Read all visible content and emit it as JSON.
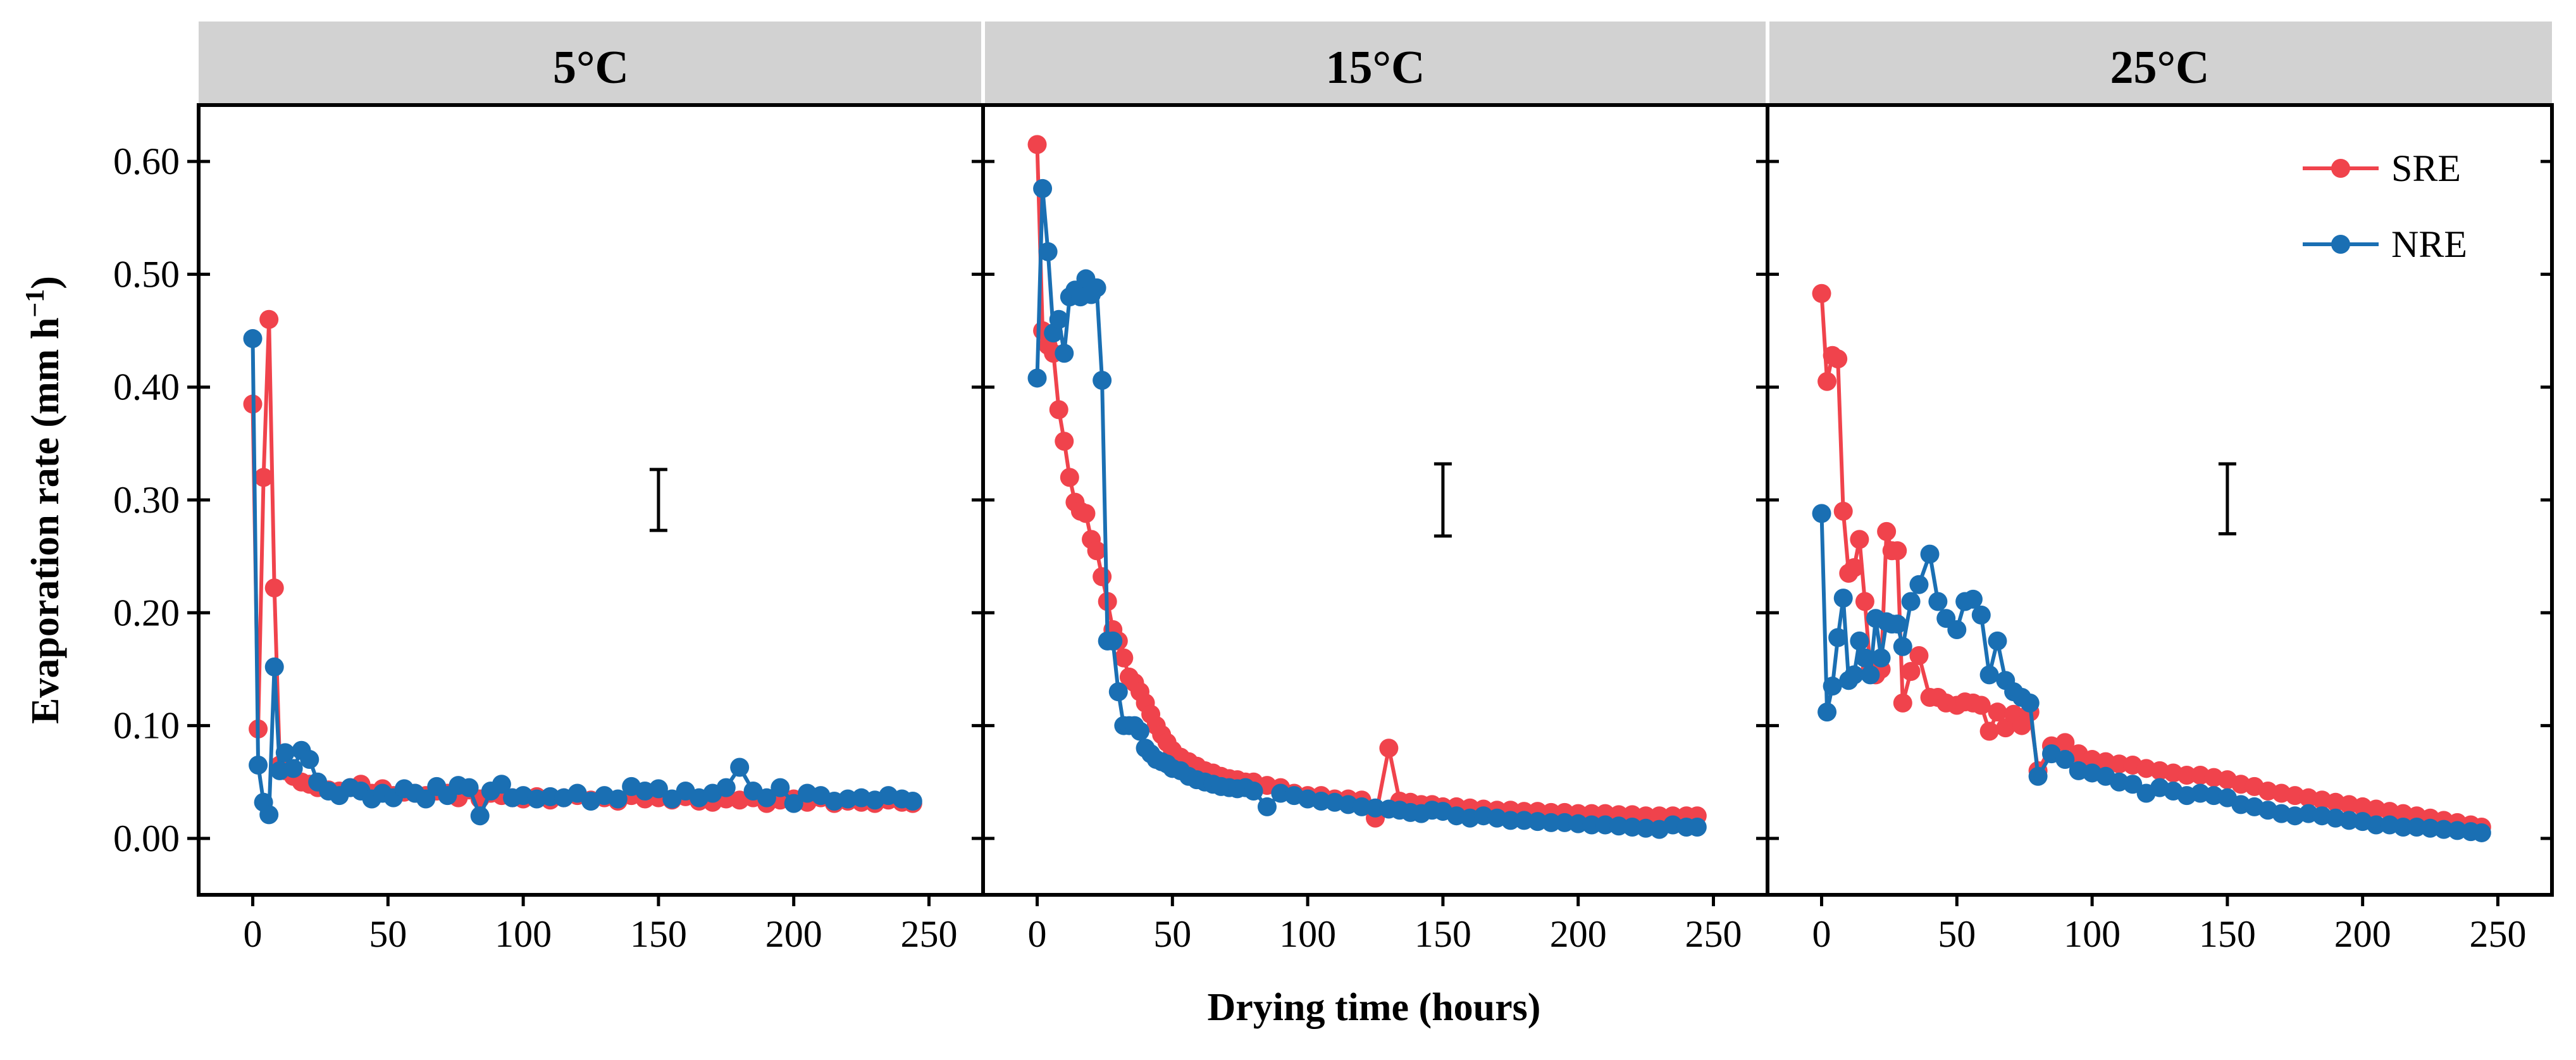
{
  "chart_data": {
    "type": "line",
    "xlabel": "Drying time (hours)",
    "ylabel_main": "Evaporation rate (mm h",
    "ylabel_sup": "−1",
    "ylabel_end": ")",
    "xlim": [
      -20,
      270
    ],
    "ylim": [
      -0.05,
      0.65
    ],
    "x_ticks": [
      0,
      50,
      100,
      150,
      200,
      250
    ],
    "y_ticks": [
      0.0,
      0.1,
      0.2,
      0.3,
      0.4,
      0.5,
      0.6
    ],
    "y_tick_labels": [
      "0.00",
      "0.10",
      "0.20",
      "0.30",
      "0.40",
      "0.50",
      "0.60"
    ],
    "x_tick_labels": [
      "0",
      "50",
      "100",
      "150",
      "200",
      "250"
    ],
    "legend": [
      {
        "name": "SRE",
        "color": "#f0434c"
      },
      {
        "name": "NRE",
        "color": "#1a6fb3"
      }
    ],
    "panels": [
      {
        "title": "5°C",
        "error_bar": {
          "x": 150,
          "low": 0.273,
          "high": 0.327
        },
        "series": [
          {
            "name": "SRE",
            "color": "#f0434c",
            "x": [
              0,
              2,
              4,
              6,
              8,
              10,
              12,
              15,
              18,
              21,
              24,
              28,
              32,
              36,
              40,
              44,
              48,
              52,
              56,
              60,
              64,
              68,
              72,
              76,
              80,
              84,
              88,
              92,
              96,
              100,
              105,
              110,
              115,
              120,
              125,
              130,
              135,
              140,
              145,
              150,
              155,
              160,
              165,
              170,
              175,
              180,
              185,
              190,
              195,
              200,
              205,
              210,
              215,
              220,
              225,
              230,
              235,
              240,
              244
            ],
            "y": [
              0.385,
              0.097,
              0.32,
              0.46,
              0.222,
              0.065,
              0.06,
              0.055,
              0.05,
              0.048,
              0.045,
              0.043,
              0.042,
              0.045,
              0.048,
              0.04,
              0.044,
              0.038,
              0.041,
              0.04,
              0.038,
              0.042,
              0.04,
              0.036,
              0.043,
              0.035,
              0.04,
              0.038,
              0.036,
              0.035,
              0.037,
              0.034,
              0.036,
              0.038,
              0.034,
              0.036,
              0.033,
              0.038,
              0.035,
              0.036,
              0.034,
              0.037,
              0.033,
              0.032,
              0.035,
              0.034,
              0.036,
              0.031,
              0.034,
              0.035,
              0.032,
              0.036,
              0.031,
              0.033,
              0.032,
              0.031,
              0.034,
              0.032,
              0.031
            ]
          },
          {
            "name": "NRE",
            "color": "#1a6fb3",
            "x": [
              0,
              2,
              4,
              6,
              8,
              10,
              12,
              15,
              18,
              21,
              24,
              28,
              32,
              36,
              40,
              44,
              48,
              52,
              56,
              60,
              64,
              68,
              72,
              76,
              80,
              84,
              88,
              92,
              96,
              100,
              105,
              110,
              115,
              120,
              125,
              130,
              135,
              140,
              145,
              150,
              155,
              160,
              165,
              170,
              175,
              180,
              185,
              190,
              195,
              200,
              205,
              210,
              215,
              220,
              225,
              230,
              235,
              240,
              244
            ],
            "y": [
              0.443,
              0.065,
              0.032,
              0.021,
              0.152,
              0.06,
              0.076,
              0.062,
              0.078,
              0.07,
              0.05,
              0.042,
              0.038,
              0.045,
              0.042,
              0.035,
              0.04,
              0.036,
              0.044,
              0.04,
              0.035,
              0.046,
              0.038,
              0.047,
              0.045,
              0.02,
              0.042,
              0.048,
              0.036,
              0.038,
              0.035,
              0.037,
              0.036,
              0.04,
              0.033,
              0.038,
              0.035,
              0.046,
              0.042,
              0.044,
              0.035,
              0.042,
              0.036,
              0.04,
              0.045,
              0.063,
              0.042,
              0.036,
              0.045,
              0.031,
              0.04,
              0.038,
              0.033,
              0.035,
              0.036,
              0.034,
              0.038,
              0.035,
              0.033
            ]
          }
        ]
      },
      {
        "title": "15°C",
        "error_bar": {
          "x": 150,
          "low": 0.268,
          "high": 0.332
        },
        "series": [
          {
            "name": "SRE",
            "color": "#f0434c",
            "x": [
              0,
              2,
              4,
              6,
              8,
              10,
              12,
              14,
              16,
              18,
              20,
              22,
              24,
              26,
              28,
              30,
              32,
              34,
              36,
              38,
              40,
              42,
              44,
              46,
              48,
              50,
              53,
              56,
              59,
              62,
              65,
              68,
              71,
              74,
              77,
              80,
              85,
              90,
              95,
              100,
              105,
              110,
              115,
              120,
              125,
              130,
              134,
              138,
              142,
              146,
              150,
              155,
              160,
              165,
              170,
              175,
              180,
              185,
              190,
              195,
              200,
              205,
              210,
              215,
              220,
              225,
              230,
              235,
              240,
              244
            ],
            "y": [
              0.615,
              0.45,
              0.437,
              0.43,
              0.38,
              0.352,
              0.32,
              0.298,
              0.29,
              0.288,
              0.265,
              0.255,
              0.232,
              0.21,
              0.185,
              0.175,
              0.16,
              0.143,
              0.138,
              0.13,
              0.12,
              0.11,
              0.1,
              0.092,
              0.085,
              0.078,
              0.072,
              0.068,
              0.064,
              0.06,
              0.058,
              0.055,
              0.053,
              0.052,
              0.05,
              0.05,
              0.047,
              0.045,
              0.04,
              0.038,
              0.038,
              0.035,
              0.035,
              0.034,
              0.018,
              0.08,
              0.033,
              0.032,
              0.03,
              0.03,
              0.028,
              0.028,
              0.027,
              0.026,
              0.025,
              0.025,
              0.024,
              0.024,
              0.023,
              0.023,
              0.022,
              0.022,
              0.022,
              0.021,
              0.021,
              0.02,
              0.02,
              0.02,
              0.02,
              0.02
            ]
          },
          {
            "name": "NRE",
            "color": "#1a6fb3",
            "x": [
              0,
              2,
              4,
              6,
              8,
              10,
              12,
              14,
              16,
              18,
              20,
              22,
              24,
              26,
              28,
              30,
              32,
              34,
              36,
              38,
              40,
              42,
              44,
              46,
              48,
              50,
              53,
              56,
              59,
              62,
              65,
              68,
              71,
              74,
              77,
              80,
              85,
              90,
              95,
              100,
              105,
              110,
              115,
              120,
              125,
              130,
              134,
              138,
              142,
              146,
              150,
              155,
              160,
              165,
              170,
              175,
              180,
              185,
              190,
              195,
              200,
              205,
              210,
              215,
              220,
              225,
              230,
              235,
              240,
              244
            ],
            "y": [
              0.408,
              0.576,
              0.52,
              0.448,
              0.46,
              0.43,
              0.48,
              0.486,
              0.48,
              0.496,
              0.482,
              0.488,
              0.406,
              0.175,
              0.175,
              0.13,
              0.1,
              0.1,
              0.1,
              0.095,
              0.08,
              0.075,
              0.07,
              0.068,
              0.066,
              0.062,
              0.06,
              0.055,
              0.052,
              0.05,
              0.048,
              0.046,
              0.045,
              0.044,
              0.045,
              0.042,
              0.028,
              0.04,
              0.038,
              0.035,
              0.033,
              0.032,
              0.03,
              0.028,
              0.027,
              0.026,
              0.025,
              0.023,
              0.022,
              0.025,
              0.024,
              0.02,
              0.018,
              0.02,
              0.018,
              0.016,
              0.016,
              0.015,
              0.014,
              0.014,
              0.013,
              0.012,
              0.012,
              0.011,
              0.01,
              0.009,
              0.008,
              0.012,
              0.01,
              0.01
            ]
          }
        ]
      },
      {
        "title": "25°C",
        "error_bar": {
          "x": 150,
          "low": 0.27,
          "high": 0.332
        },
        "series": [
          {
            "name": "SRE",
            "color": "#f0434c",
            "x": [
              0,
              2,
              4,
              6,
              8,
              10,
              12,
              14,
              16,
              18,
              20,
              22,
              24,
              26,
              28,
              30,
              33,
              36,
              40,
              43,
              46,
              50,
              53,
              56,
              59,
              62,
              65,
              68,
              71,
              74,
              77,
              80,
              85,
              90,
              95,
              100,
              105,
              110,
              115,
              120,
              125,
              130,
              135,
              140,
              145,
              150,
              155,
              160,
              165,
              170,
              175,
              180,
              185,
              190,
              195,
              200,
              205,
              210,
              215,
              220,
              225,
              230,
              235,
              240,
              244
            ],
            "y": [
              0.483,
              0.405,
              0.428,
              0.425,
              0.29,
              0.235,
              0.24,
              0.265,
              0.21,
              0.15,
              0.145,
              0.15,
              0.272,
              0.255,
              0.255,
              0.12,
              0.148,
              0.162,
              0.125,
              0.125,
              0.12,
              0.118,
              0.121,
              0.12,
              0.118,
              0.095,
              0.112,
              0.098,
              0.11,
              0.1,
              0.112,
              0.06,
              0.082,
              0.085,
              0.075,
              0.07,
              0.068,
              0.066,
              0.065,
              0.062,
              0.06,
              0.058,
              0.056,
              0.056,
              0.054,
              0.052,
              0.048,
              0.046,
              0.042,
              0.04,
              0.038,
              0.036,
              0.034,
              0.032,
              0.03,
              0.028,
              0.026,
              0.024,
              0.022,
              0.02,
              0.018,
              0.016,
              0.014,
              0.012,
              0.01
            ]
          },
          {
            "name": "NRE",
            "color": "#1a6fb3",
            "x": [
              0,
              2,
              4,
              6,
              8,
              10,
              12,
              14,
              16,
              18,
              20,
              22,
              24,
              26,
              28,
              30,
              33,
              36,
              40,
              43,
              46,
              50,
              53,
              56,
              59,
              62,
              65,
              68,
              71,
              74,
              77,
              80,
              85,
              90,
              95,
              100,
              105,
              110,
              115,
              120,
              125,
              130,
              135,
              140,
              145,
              150,
              155,
              160,
              165,
              170,
              175,
              180,
              185,
              190,
              195,
              200,
              205,
              210,
              215,
              220,
              225,
              230,
              235,
              240,
              244
            ],
            "y": [
              0.288,
              0.112,
              0.135,
              0.178,
              0.213,
              0.14,
              0.145,
              0.175,
              0.16,
              0.145,
              0.195,
              0.16,
              0.192,
              0.19,
              0.19,
              0.17,
              0.21,
              0.225,
              0.252,
              0.21,
              0.195,
              0.185,
              0.21,
              0.212,
              0.198,
              0.145,
              0.175,
              0.14,
              0.13,
              0.125,
              0.12,
              0.055,
              0.075,
              0.07,
              0.06,
              0.058,
              0.055,
              0.05,
              0.048,
              0.04,
              0.045,
              0.042,
              0.038,
              0.04,
              0.038,
              0.036,
              0.03,
              0.028,
              0.025,
              0.022,
              0.02,
              0.022,
              0.02,
              0.018,
              0.016,
              0.015,
              0.012,
              0.012,
              0.01,
              0.01,
              0.009,
              0.008,
              0.007,
              0.006,
              0.005
            ]
          }
        ]
      }
    ]
  }
}
